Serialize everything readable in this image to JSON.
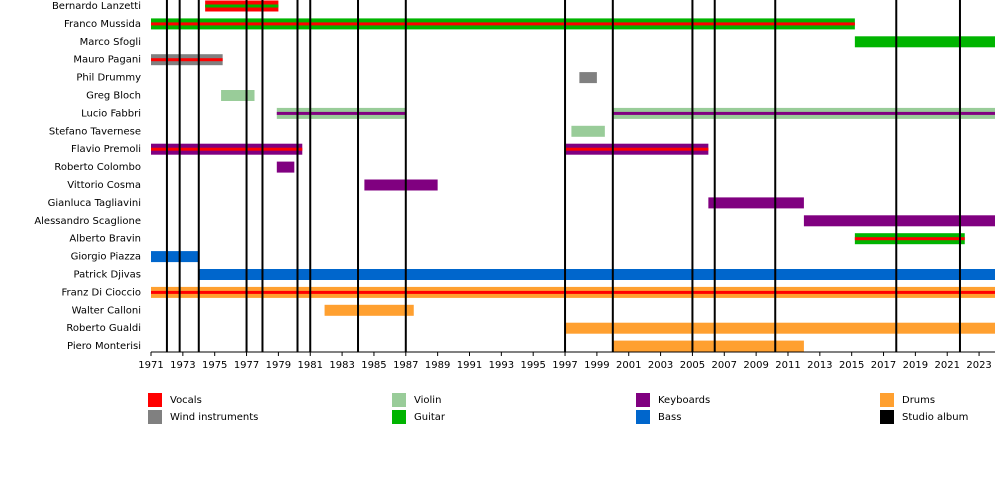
{
  "chart_data": {
    "type": "timeline",
    "xlim": [
      1971,
      2024
    ],
    "xticks": [
      1971,
      1973,
      1975,
      1977,
      1979,
      1981,
      1983,
      1985,
      1987,
      1989,
      1991,
      1993,
      1995,
      1997,
      1999,
      2001,
      2003,
      2005,
      2007,
      2009,
      2011,
      2013,
      2015,
      2017,
      2019,
      2021,
      2023
    ],
    "legend": [
      {
        "name": "Vocals",
        "color": "#ff0000"
      },
      {
        "name": "Wind instruments",
        "color": "#808080"
      },
      {
        "name": "Violin",
        "color": "#99cc99"
      },
      {
        "name": "Guitar",
        "color": "#00b400"
      },
      {
        "name": "Keyboards",
        "color": "#800080"
      },
      {
        "name": "Bass",
        "color": "#0066cc"
      },
      {
        "name": "Drums",
        "color": "#ffa030"
      },
      {
        "name": "Studio album",
        "color": "#000000"
      }
    ],
    "albums": [
      1972.0,
      1972.8,
      1974.0,
      1977.0,
      1978.0,
      1980.2,
      1981.0,
      1984.0,
      1987.0,
      1997.0,
      2000.0,
      2005.0,
      2006.4,
      2010.2,
      2017.8,
      2021.8
    ],
    "members": [
      {
        "name": "Bernardo Lanzetti",
        "periods": [
          {
            "start": 1974.4,
            "end": 1979.0,
            "role": "Vocals",
            "role2": "Guitar"
          }
        ]
      },
      {
        "name": "Franco Mussida",
        "periods": [
          {
            "start": 1971,
            "end": 2015.2,
            "role": "Guitar",
            "role2": "Vocals"
          }
        ]
      },
      {
        "name": "Marco Sfogli",
        "periods": [
          {
            "start": 2015.2,
            "end": 2024,
            "role": "Guitar"
          }
        ]
      },
      {
        "name": "Mauro Pagani",
        "periods": [
          {
            "start": 1971,
            "end": 1975.5,
            "role": "Wind instruments",
            "role2": "Vocals"
          }
        ]
      },
      {
        "name": "Phil Drummy",
        "periods": [
          {
            "start": 1997.9,
            "end": 1999.0,
            "role": "Wind instruments"
          }
        ]
      },
      {
        "name": "Greg Bloch",
        "periods": [
          {
            "start": 1975.4,
            "end": 1977.5,
            "role": "Violin"
          }
        ]
      },
      {
        "name": "Lucio Fabbri",
        "periods": [
          {
            "start": 1978.9,
            "end": 1987.0,
            "role": "Violin",
            "role2": "Keyboards"
          },
          {
            "start": 2000.0,
            "end": 2024,
            "role": "Violin",
            "role2": "Keyboards"
          }
        ]
      },
      {
        "name": "Stefano Tavernese",
        "periods": [
          {
            "start": 1997.4,
            "end": 1999.5,
            "role": "Violin"
          }
        ]
      },
      {
        "name": "Flavio Premoli",
        "periods": [
          {
            "start": 1971,
            "end": 1980.5,
            "role": "Keyboards",
            "role2": "Vocals"
          },
          {
            "start": 1997.0,
            "end": 2006.0,
            "role": "Keyboards",
            "role2": "Vocals"
          }
        ]
      },
      {
        "name": "Roberto Colombo",
        "periods": [
          {
            "start": 1978.9,
            "end": 1980.0,
            "role": "Keyboards"
          }
        ]
      },
      {
        "name": "Vittorio Cosma",
        "periods": [
          {
            "start": 1984.4,
            "end": 1989.0,
            "role": "Keyboards"
          }
        ]
      },
      {
        "name": "Gianluca Tagliavini",
        "periods": [
          {
            "start": 2006.0,
            "end": 2012.0,
            "role": "Keyboards"
          }
        ]
      },
      {
        "name": "Alessandro Scaglione",
        "periods": [
          {
            "start": 2012.0,
            "end": 2024,
            "role": "Keyboards"
          }
        ]
      },
      {
        "name": "Alberto Bravin",
        "periods": [
          {
            "start": 2015.2,
            "end": 2022.1,
            "role": "Guitar",
            "role2": "Vocals"
          }
        ]
      },
      {
        "name": "Giorgio Piazza",
        "periods": [
          {
            "start": 1971,
            "end": 1974.0,
            "role": "Bass"
          }
        ]
      },
      {
        "name": "Patrick Djivas",
        "periods": [
          {
            "start": 1974.0,
            "end": 2024,
            "role": "Bass"
          }
        ]
      },
      {
        "name": "Franz Di Cioccio",
        "periods": [
          {
            "start": 1971,
            "end": 2024,
            "role": "Drums",
            "role2": "Vocals"
          }
        ]
      },
      {
        "name": "Walter Calloni",
        "periods": [
          {
            "start": 1981.9,
            "end": 1987.5,
            "role": "Drums"
          }
        ]
      },
      {
        "name": "Roberto Gualdi",
        "periods": [
          {
            "start": 1997.0,
            "end": 2024,
            "role": "Drums"
          }
        ]
      },
      {
        "name": "Piero Monterisi",
        "periods": [
          {
            "start": 2000.0,
            "end": 2012.0,
            "role": "Drums"
          }
        ]
      }
    ]
  }
}
